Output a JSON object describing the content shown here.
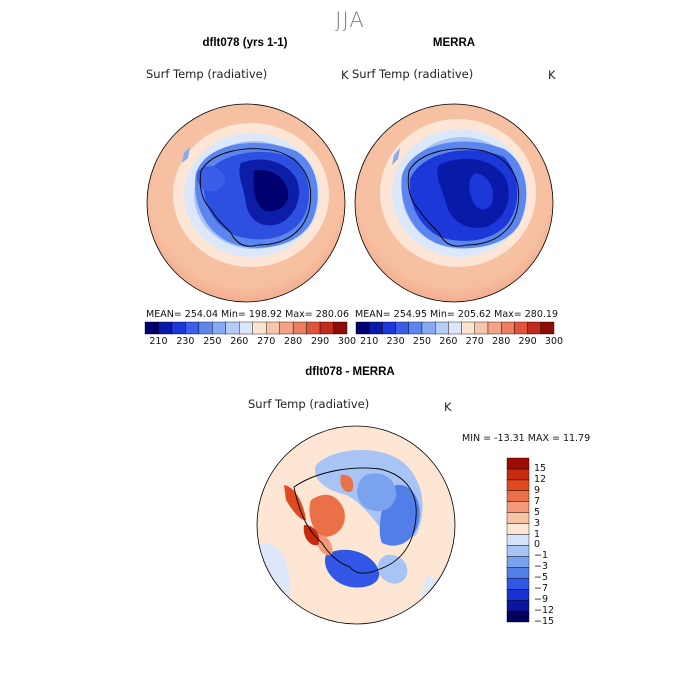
{
  "page": {
    "title": "JJA"
  },
  "panels": {
    "model": {
      "title": "dflt078 (yrs 1-1)",
      "variable": "Surf Temp (radiative)",
      "units": "K",
      "stats": "MEAN= 254.04   Min= 198.92   Max= 280.06"
    },
    "obs": {
      "title": "MERRA",
      "variable": "Surf Temp (radiative)",
      "units": "K",
      "stats": "MEAN= 254.95   Min= 205.62   Max= 280.19"
    },
    "diff": {
      "title": "dflt078 - MERRA",
      "variable": "Surf Temp (radiative)",
      "units": "K",
      "stats": "MIN = -13.31  MAX =  11.79"
    }
  },
  "colorbar_abs": {
    "colors": [
      "#000070",
      "#0a1aa8",
      "#1c38d8",
      "#3a5ee8",
      "#5c86ee",
      "#86aaf2",
      "#b4ccf6",
      "#dce8fa",
      "#fde4d0",
      "#f8c6ac",
      "#f3a486",
      "#ec7e60",
      "#e0543a",
      "#c22c1c",
      "#8e0c08"
    ],
    "labels": [
      "210",
      "230",
      "250",
      "260",
      "270",
      "280",
      "290",
      "300"
    ]
  },
  "colorbar_diff": {
    "colors": [
      "#00005a",
      "#0a14a0",
      "#1a32d4",
      "#3256e6",
      "#527ee8",
      "#7aa2ee",
      "#a8c4f4",
      "#d4e4fa",
      "#fde6d4",
      "#f8c4a8",
      "#f29a78",
      "#ea7048",
      "#e04a20",
      "#c82a0c",
      "#9e0c04"
    ],
    "labels": [
      "15",
      "12",
      "9",
      "7",
      "5",
      "3",
      "1",
      "0",
      "−1",
      "−3",
      "−5",
      "−7",
      "−9",
      "−12",
      "−15"
    ]
  }
}
